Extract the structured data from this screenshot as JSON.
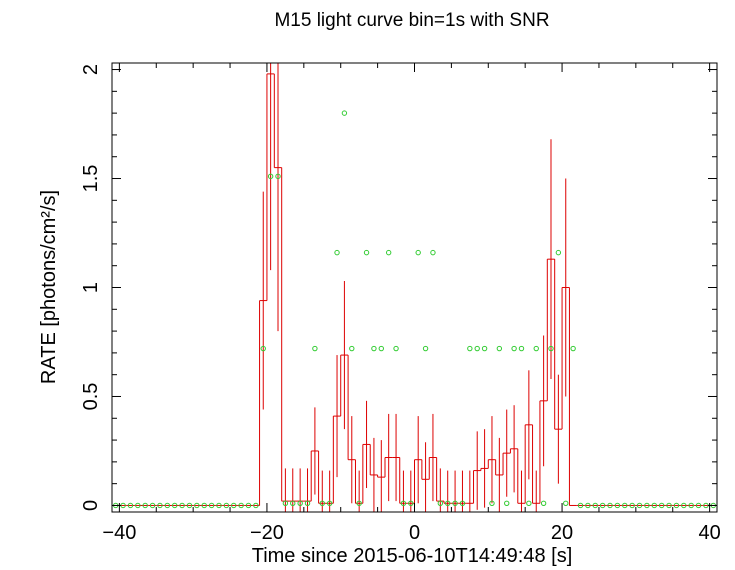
{
  "chart_data": {
    "type": "line",
    "title": "M15 light curve bin=1s with SNR",
    "xlabel": "Time since 2015-06-10T14:49:48 [s]",
    "ylabel": "RATE [photons/cm²/s]",
    "xlim": [
      -41,
      41
    ],
    "ylim": [
      -0.03,
      2.03
    ],
    "x_ticks": [
      -40,
      -20,
      0,
      20,
      40
    ],
    "x_tick_labels": [
      "−40",
      "−20",
      "0",
      "20",
      "40"
    ],
    "y_ticks": [
      0,
      0.5,
      1,
      1.5,
      2
    ],
    "y_tick_labels": [
      "0",
      "0.5",
      "1",
      "1.5",
      "2"
    ],
    "grid": false,
    "colors": {
      "rate": "#dd0000",
      "snr": "#33cc33",
      "axes": "#000000"
    },
    "series": [
      {
        "name": "rate",
        "style": "step-with-errorbars",
        "x": [
          -41,
          -40,
          -39,
          -38,
          -37,
          -36,
          -35,
          -34,
          -33,
          -32,
          -31,
          -30,
          -29,
          -28,
          -27,
          -26,
          -25,
          -24,
          -23,
          -22,
          -21,
          -20,
          -19,
          -18,
          -17,
          -16,
          -15,
          -14,
          -13,
          -12,
          -11,
          -10,
          -9,
          -8,
          -7,
          -6,
          -5,
          -4,
          -3,
          -2,
          -1,
          0,
          1,
          2,
          3,
          4,
          5,
          6,
          7,
          8,
          9,
          10,
          11,
          12,
          13,
          14,
          15,
          16,
          17,
          18,
          19,
          20,
          21,
          22,
          23,
          24,
          25,
          26,
          27,
          28,
          29,
          30,
          31,
          32,
          33,
          34,
          35,
          36,
          37,
          38,
          39,
          40
        ],
        "values": [
          0,
          0,
          0,
          0,
          0,
          0,
          0,
          0,
          0,
          0,
          0,
          0,
          0,
          0,
          0,
          0,
          0,
          0,
          0,
          0,
          0.94,
          1.98,
          1.55,
          0.02,
          0.02,
          0.02,
          0.02,
          0.25,
          0.01,
          0.01,
          0.41,
          0.69,
          0.21,
          0.01,
          0.28,
          0.14,
          0.13,
          0.22,
          0.22,
          0.01,
          0.01,
          0.21,
          0.12,
          0.22,
          0.02,
          0.01,
          0.01,
          0.01,
          0.01,
          0.16,
          0.17,
          0.21,
          0.14,
          0.24,
          0.26,
          0.01,
          0.37,
          0.01,
          0.48,
          1.13,
          0.35,
          1.0,
          0,
          0,
          0,
          0,
          0,
          0,
          0,
          0,
          0,
          0,
          0,
          0,
          0,
          0,
          0,
          0,
          0,
          0,
          0,
          0
        ],
        "errors": [
          0,
          0,
          0,
          0,
          0,
          0,
          0,
          0,
          0,
          0,
          0,
          0,
          0,
          0,
          0,
          0,
          0,
          0,
          0,
          0,
          0.5,
          0.9,
          0.75,
          0.15,
          0.15,
          0.15,
          0.15,
          0.2,
          0.15,
          0.15,
          0.28,
          0.34,
          0.2,
          0.15,
          0.2,
          0.17,
          0.17,
          0.2,
          0.2,
          0.15,
          0.15,
          0.2,
          0.17,
          0.2,
          0.15,
          0.15,
          0.15,
          0.15,
          0.15,
          0.18,
          0.18,
          0.2,
          0.17,
          0.2,
          0.2,
          0.15,
          0.25,
          0.15,
          0.3,
          0.55,
          0.25,
          0.5,
          0,
          0,
          0,
          0,
          0,
          0,
          0,
          0,
          0,
          0,
          0,
          0,
          0,
          0,
          0,
          0,
          0,
          0,
          0,
          0
        ]
      },
      {
        "name": "SNR",
        "style": "markers",
        "x": [
          -41,
          -40,
          -39,
          -38,
          -37,
          -36,
          -35,
          -34,
          -33,
          -32,
          -31,
          -30,
          -29,
          -28,
          -27,
          -26,
          -25,
          -24,
          -23,
          -22,
          -21,
          -20,
          -19,
          -18,
          -17,
          -16,
          -15,
          -14,
          -13,
          -12,
          -11,
          -10,
          -9,
          -8,
          -7,
          -6,
          -5,
          -4,
          -3,
          -2,
          -1,
          0,
          1,
          2,
          3,
          4,
          5,
          6,
          7,
          8,
          9,
          10,
          11,
          12,
          13,
          14,
          15,
          16,
          17,
          18,
          19,
          20,
          21,
          22,
          23,
          24,
          25,
          26,
          27,
          28,
          29,
          30,
          31,
          32,
          33,
          34,
          35,
          36,
          37,
          38,
          39,
          40
        ],
        "values": [
          0,
          0,
          0,
          0,
          0,
          0,
          0,
          0,
          0,
          0,
          0,
          0,
          0,
          0,
          0,
          0,
          0,
          0,
          0,
          0,
          0.72,
          1.51,
          1.51,
          0.01,
          0.01,
          0.01,
          0.01,
          0.72,
          0.01,
          0.01,
          1.16,
          1.8,
          0.72,
          0.01,
          1.16,
          0.72,
          0.72,
          1.16,
          0.72,
          0.01,
          0.01,
          1.16,
          0.72,
          1.16,
          0.01,
          0.01,
          0.01,
          0.01,
          0.72,
          0.72,
          0.72,
          0.01,
          0.72,
          0.01,
          0.72,
          0.72,
          0.01,
          0.72,
          0.01,
          0.72,
          1.16,
          0.01,
          0.72,
          0,
          0,
          0,
          0,
          0,
          0,
          0,
          0,
          0,
          0,
          0,
          0,
          0,
          0,
          0,
          0,
          0,
          0,
          0
        ]
      }
    ]
  }
}
